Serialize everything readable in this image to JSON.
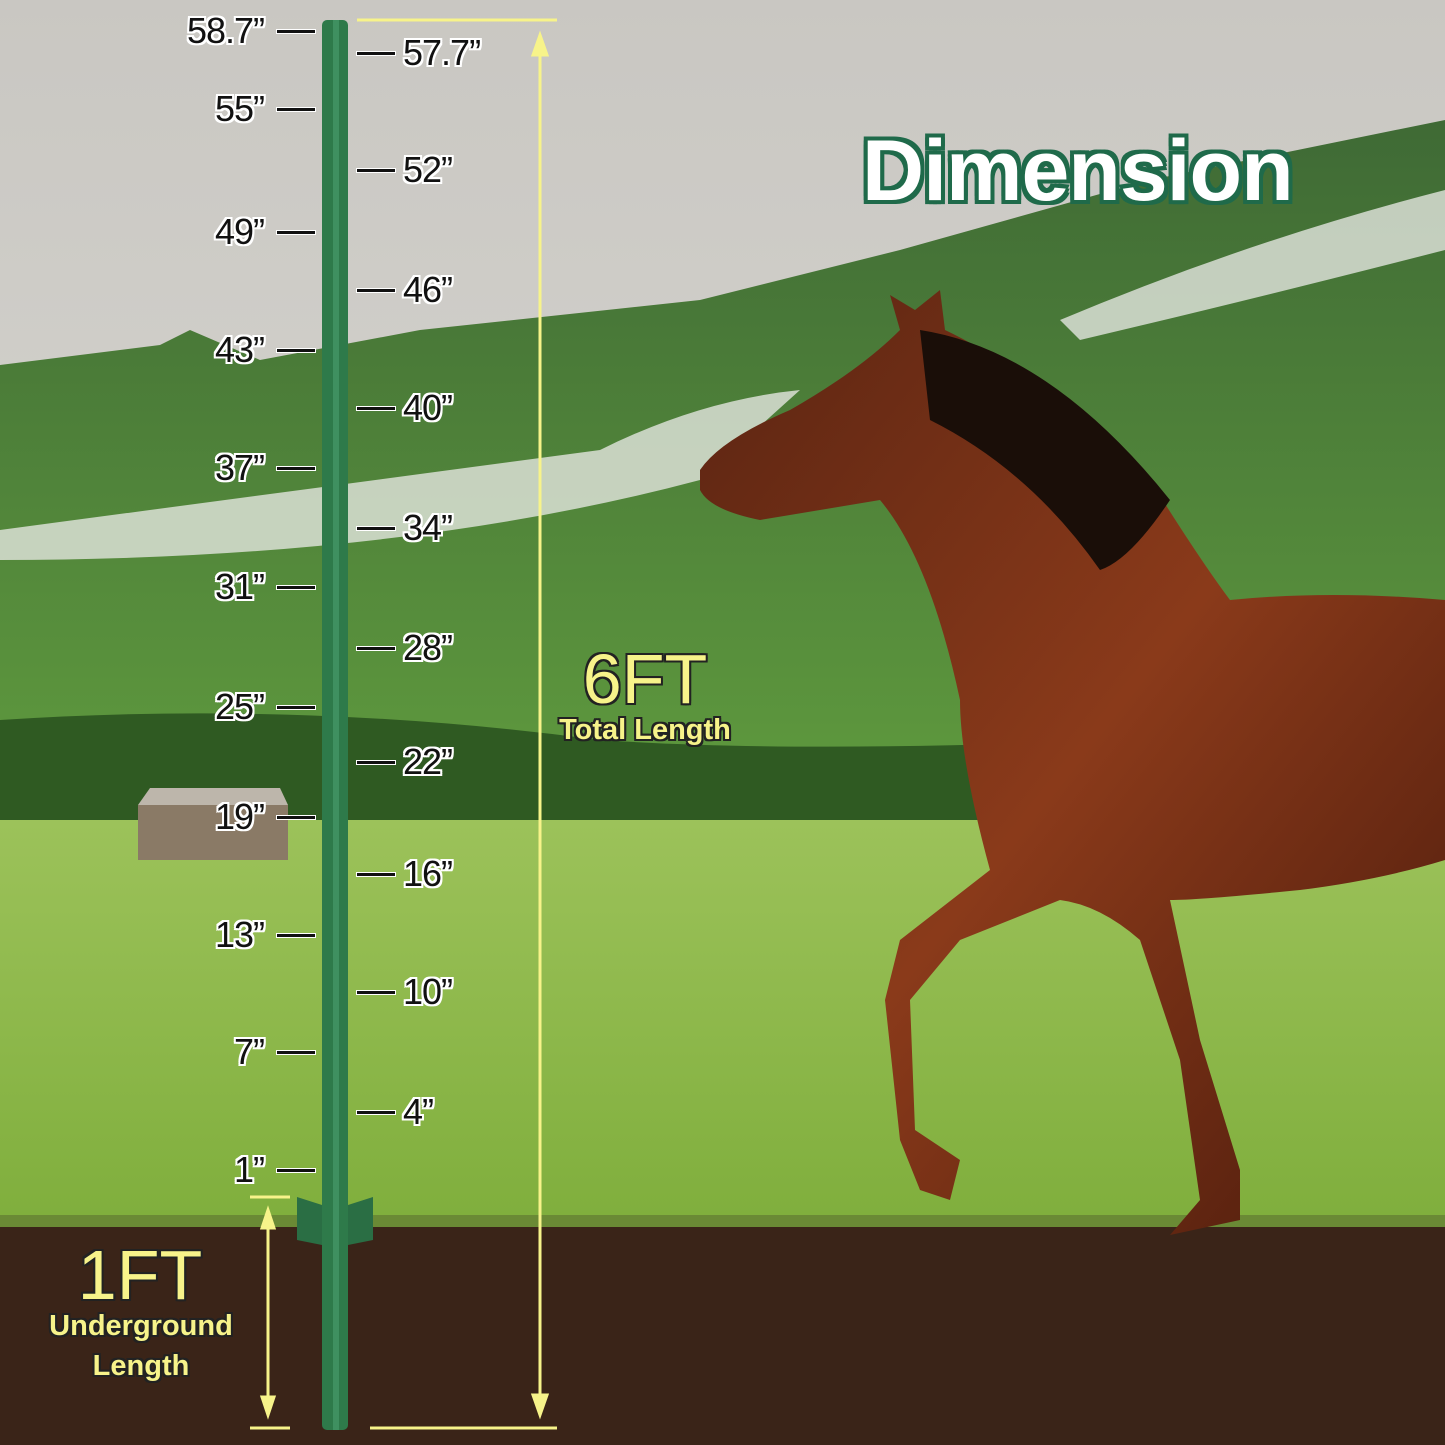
{
  "title": "Dimension",
  "left_labels": [
    "58.7”",
    "55”",
    "49”",
    "43”",
    "37”",
    "31”",
    "25”",
    "19”",
    "13”",
    "7”",
    "1”"
  ],
  "right_labels": [
    "57.7”",
    "52”",
    "46”",
    "40”",
    "34”",
    "28”",
    "22”",
    "16”",
    "10”",
    "4”"
  ],
  "total": {
    "value": "6FT",
    "caption": "Total Length"
  },
  "underground": {
    "value": "1FT",
    "caption_line1": "Underground",
    "caption_line2": "Length"
  },
  "colors": {
    "post": "#2e7a4a",
    "dimension_line": "#f7f38a",
    "title_outline": "#1f6a4a",
    "soil": "#3a2418"
  }
}
